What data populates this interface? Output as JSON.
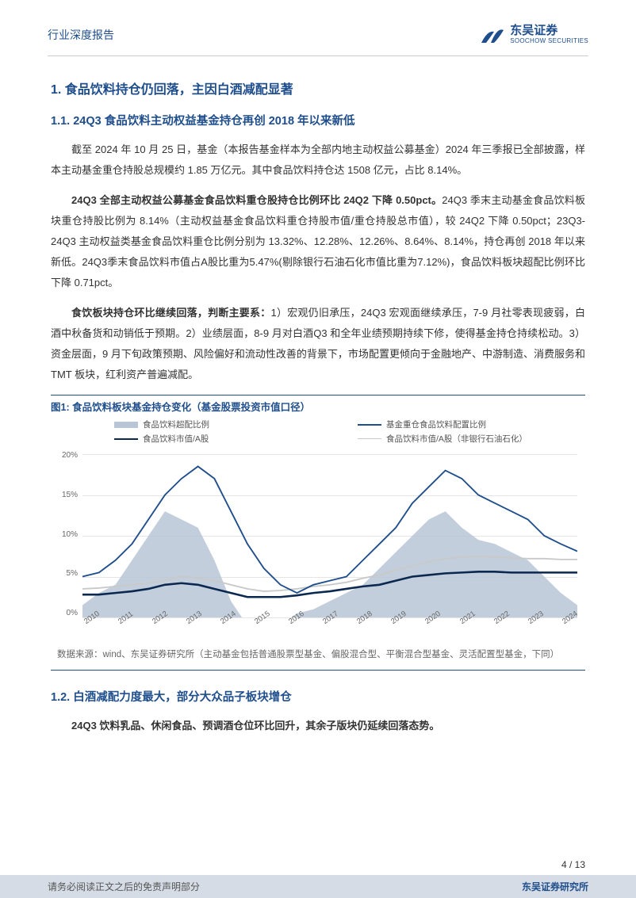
{
  "header": {
    "doc_type": "行业深度报告",
    "logo_cn": "东吴证券",
    "logo_en": "SOOCHOW SECURITIES"
  },
  "section1": {
    "number": "1.",
    "title": "食品饮料持仓仍回落，主因白酒减配显著"
  },
  "section1_1": {
    "number": "1.1.",
    "title": "24Q3 食品饮料主动权益基金持仓再创 2018 年以来新低"
  },
  "para1": "截至 2024 年 10 月 25 日，基金（本报告基金样本为全部内地主动权益公募基金）2024 年三季报已全部披露，样本主动基金重仓持股总规模约 1.85 万亿元。其中食品饮料持仓达 1508 亿元，占比 8.14%。",
  "para2_bold": "24Q3 全部主动权益公募基金食品饮料重仓股持仓比例环比 24Q2 下降 0.50pct。",
  "para2_rest": "24Q3 季末主动基金食品饮料板块重仓持股比例为 8.14%（主动权益基金食品饮料重仓持股市值/重仓持股总市值），较 24Q2 下降 0.50pct；23Q3-24Q3 主动权益类基金食品饮料重仓比例分别为 13.32%、12.28%、12.26%、8.64%、8.14%，持仓再创 2018 年以来新低。24Q3季末食品饮料市值占A股比重为5.47%(剔除银行石油石化市值比重为7.12%)，食品饮料板块超配比例环比下降 0.71pct。",
  "para3_bold": "食饮板块持仓环比继续回落，判断主要系：",
  "para3_rest": "1）宏观仍旧承压，24Q3 宏观面继续承压，7-9 月社零表现疲弱，白酒中秋备货和动销低于预期。2）业绩层面，8-9 月对白酒Q3 和全年业绩预期持续下修，使得基金持仓持续松动。3）资金层面，9 月下旬政策预期、风险偏好和流动性改善的背景下，市场配置更倾向于金融地产、中游制造、消费服务和 TMT 板块，红利资产普遍减配。",
  "figure1": {
    "title": "图1: 食品饮料板块基金持仓变化（基金股票投资市值口径）",
    "legend": {
      "s1": "食品饮料超配比例",
      "s2": "基金重仓食品饮料配置比例",
      "s3": "食品饮料市值/A股",
      "s4": "食品饮料市值/A股（非银行石油石化）"
    },
    "y_ticks": [
      "20%",
      "15%",
      "10%",
      "5%",
      "0%"
    ],
    "x_ticks": [
      "2010",
      "2011",
      "2012",
      "2013",
      "2014",
      "2015",
      "2016",
      "2017",
      "2018",
      "2019",
      "2020",
      "2021",
      "2022",
      "2023",
      "2024"
    ],
    "colors": {
      "area": "#b8c5d6",
      "line_heavy": "#1f4e8c",
      "line_dark": "#0a2850",
      "line_light": "#c9c9c9",
      "grid": "#e5e5e5",
      "bg": "#ffffff"
    },
    "ylim": [
      0,
      20
    ],
    "series_area_overweight": [
      1.5,
      3,
      4,
      7,
      10,
      13,
      12,
      11,
      7,
      2,
      -1,
      0,
      -1,
      0.5,
      1,
      2,
      3,
      4,
      6,
      8,
      10,
      12,
      13,
      11,
      9.5,
      9,
      8,
      7,
      5,
      3,
      1.5
    ],
    "series_line_allocation": [
      5,
      5.5,
      7,
      9,
      12,
      15,
      17,
      18.5,
      17,
      13,
      9,
      6,
      4,
      3,
      4,
      4.5,
      5,
      7,
      9,
      11,
      14,
      16,
      18,
      17,
      15,
      14,
      13,
      12,
      10,
      9,
      8.1
    ],
    "series_line_mktcap": [
      2.8,
      2.8,
      3,
      3.2,
      3.5,
      4,
      4.2,
      4,
      3.5,
      3,
      2.5,
      2.5,
      2.5,
      2.7,
      3,
      3.2,
      3.5,
      3.8,
      4,
      4.5,
      5,
      5.2,
      5.4,
      5.5,
      5.6,
      5.6,
      5.5,
      5.5,
      5.5,
      5.5,
      5.5
    ],
    "series_line_mktcap_ex": [
      3.5,
      3.6,
      3.8,
      4,
      4.2,
      4.5,
      5,
      4.8,
      4.5,
      4,
      3.5,
      3.2,
      3.3,
      3.5,
      3.8,
      4,
      4.3,
      4.8,
      5.2,
      5.8,
      6.3,
      6.8,
      7.2,
      7.4,
      7.5,
      7.4,
      7.3,
      7.2,
      7.2,
      7.1,
      7.1
    ]
  },
  "source": "数据来源：wind、东吴证券研究所（主动基金包括普通股票型基金、偏股混合型、平衡混合型基金、灵活配置型基金，下同）",
  "section1_2": {
    "number": "1.2.",
    "title": "白酒减配力度最大，部分大众品子板块增仓"
  },
  "para4_bold": "24Q3 饮料乳品、休闲食品、预调酒仓位环比回升，其余子版块仍延续回落态势。",
  "footer": {
    "page_num": "4 / 13",
    "disclaimer": "请务必阅读正文之后的免责声明部分",
    "institute": "东吴证券研究所"
  }
}
